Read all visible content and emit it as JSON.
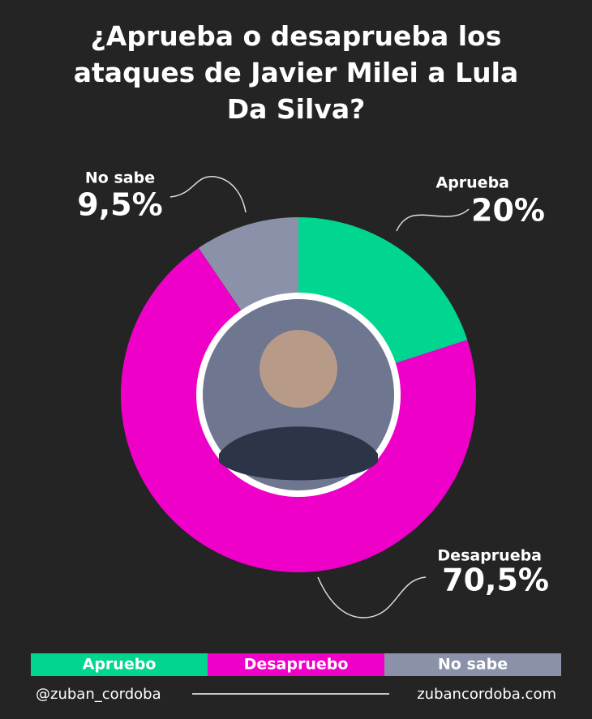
{
  "chart_data": {
    "type": "donut",
    "title": "¿Aprueba o desaprueba los ataques de Javier Milei a Lula Da Silva?",
    "categories": [
      "Aprueba",
      "Desaprueba",
      "No sabe"
    ],
    "values": [
      20,
      70.5,
      9.5
    ],
    "value_labels": [
      "20%",
      "70,5%",
      "9,5%"
    ],
    "colors": [
      "#00d68f",
      "#ee00c8",
      "#8b91a9"
    ],
    "legend_labels": [
      "Apruebo",
      "Desapruebo",
      "No sabe"
    ]
  },
  "footer": {
    "handle": "@zuban_cordoba",
    "website": "zubancordoba.com"
  }
}
